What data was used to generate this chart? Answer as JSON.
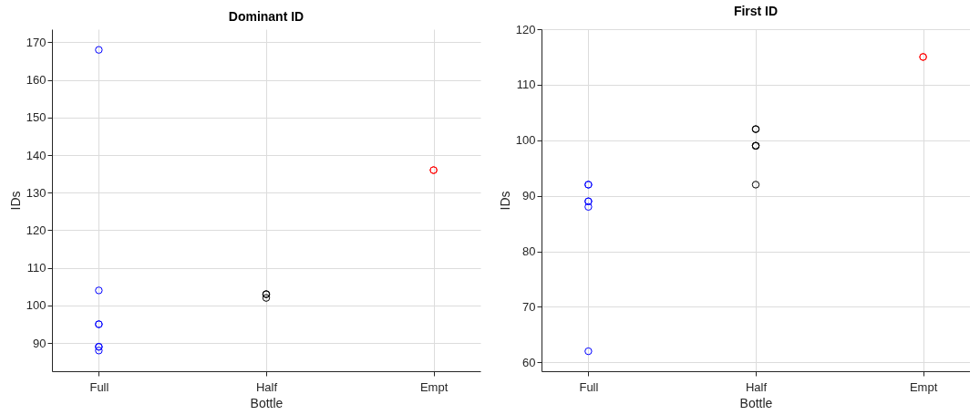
{
  "chart_data": [
    {
      "type": "scatter",
      "title": "Dominant ID",
      "xlabel": "Bottle",
      "ylabel": "IDs",
      "categories": [
        "Full",
        "Half",
        "Empt"
      ],
      "ylim": [
        82.5,
        173.5
      ],
      "yticks": [
        90,
        100,
        110,
        120,
        130,
        140,
        150,
        160,
        170
      ],
      "grid": true,
      "marker": "circle",
      "series": [
        {
          "color": "#0000ff",
          "x": [
            "Full",
            "Full",
            "Full",
            "Full",
            "Full",
            "Full",
            "Full"
          ],
          "values": [
            168,
            104,
            95,
            95,
            89,
            89,
            88
          ]
        },
        {
          "color": "#000000",
          "x": [
            "Half",
            "Half",
            "Half"
          ],
          "values": [
            103,
            103,
            102
          ]
        },
        {
          "color": "#ff0000",
          "x": [
            "Empt",
            "Empt"
          ],
          "values": [
            136,
            136
          ]
        }
      ]
    },
    {
      "type": "scatter",
      "title": "First ID",
      "xlabel": "Bottle",
      "ylabel": "IDs",
      "categories": [
        "Full",
        "Half",
        "Empt"
      ],
      "ylim": [
        58.4,
        120
      ],
      "yticks": [
        60,
        70,
        80,
        90,
        100,
        110,
        120
      ],
      "grid": true,
      "marker": "circle",
      "series": [
        {
          "color": "#0000ff",
          "x": [
            "Full",
            "Full",
            "Full",
            "Full",
            "Full",
            "Full"
          ],
          "values": [
            92,
            92,
            89,
            89,
            88,
            62
          ]
        },
        {
          "color": "#000000",
          "x": [
            "Half",
            "Half",
            "Half",
            "Half",
            "Half",
            "Half"
          ],
          "values": [
            102,
            102,
            99,
            99,
            99,
            92
          ]
        },
        {
          "color": "#ff0000",
          "x": [
            "Empt",
            "Empt"
          ],
          "values": [
            115,
            115
          ]
        }
      ]
    }
  ]
}
